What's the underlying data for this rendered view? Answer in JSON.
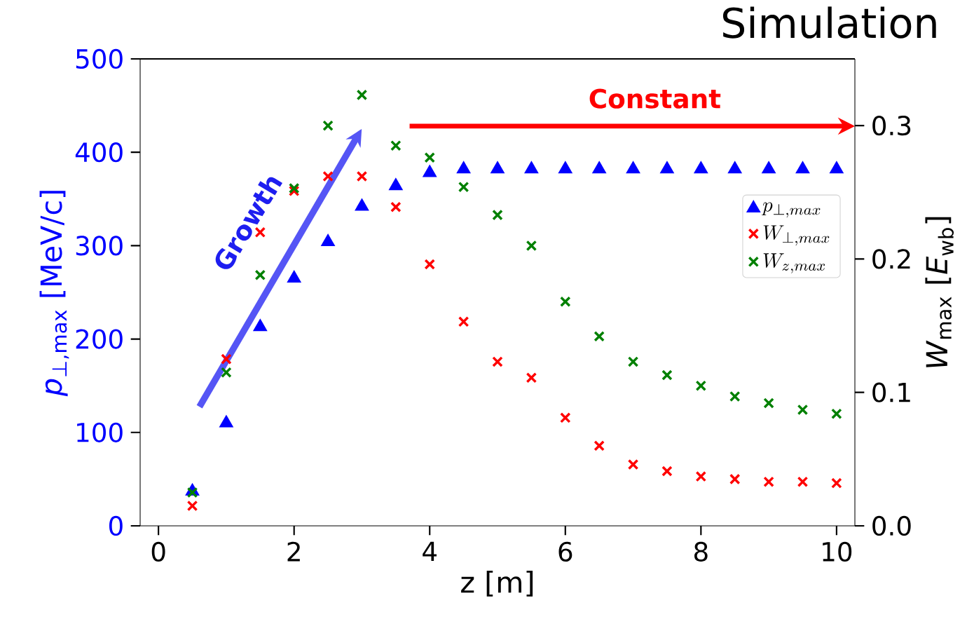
{
  "chart_data": {
    "type": "scatter",
    "title": "Simulation",
    "xlabel": "z [m]",
    "ylabel": "*p*$_{⊥,max}$ [MeV/c]",
    "y2label": "*W*$_{max}$ [*E*$_{wb}$]",
    "annotations": [
      "Growth",
      "Constant"
    ],
    "x": [
      0.5,
      1.0,
      1.5,
      2.0,
      2.5,
      3.0,
      3.5,
      4.0,
      4.5,
      5.0,
      5.5,
      6.0,
      6.5,
      7.0,
      7.5,
      8.0,
      8.5,
      9.0,
      9.5,
      10.0
    ],
    "series": [
      {
        "name": "p_{\\perp, max}",
        "color": "#0000ff",
        "marker": "triangle",
        "values": [
          37,
          110,
          213,
          265,
          304,
          342,
          364,
          378,
          382,
          382,
          382,
          382,
          382,
          382,
          382,
          382,
          382,
          382,
          382,
          382
        ]
      },
      {
        "name": "W_{\\perp, max}",
        "color": "#ff0000",
        "marker": "cross",
        "axis": "y2",
        "values": [
          0.015,
          0.125,
          0.22,
          0.251,
          0.262,
          0.262,
          0.239,
          0.196,
          0.153,
          0.123,
          0.111,
          0.081,
          0.06,
          0.046,
          0.041,
          0.037,
          0.035,
          0.033,
          0.033,
          0.032
        ]
      },
      {
        "name": "W_{z, max}",
        "color": "#008000",
        "marker": "cross",
        "axis": "y2",
        "values": [
          0.025,
          0.115,
          0.188,
          0.253,
          0.3,
          0.323,
          0.285,
          0.276,
          0.254,
          0.233,
          0.21,
          0.168,
          0.142,
          0.123,
          0.113,
          0.105,
          0.097,
          0.092,
          0.087,
          0.084
        ]
      }
    ],
    "xlim": [
      -0.27,
      10.27
    ],
    "xticks": [
      0,
      2,
      4,
      6,
      8,
      10
    ],
    "ylim": [
      0,
      500
    ],
    "yticks": [
      0,
      100,
      200,
      300,
      400,
      500
    ],
    "y2lim": [
      0,
      0.35
    ],
    "y2ticks": [
      {
        "value": 0,
        "label": "0.0"
      },
      {
        "value": 0.1,
        "label": "0.1"
      },
      {
        "value": 0.2,
        "label": "0.2"
      },
      {
        "value": 0.3,
        "label": "0.3"
      }
    ],
    "grid": false,
    "legend": "right"
  }
}
